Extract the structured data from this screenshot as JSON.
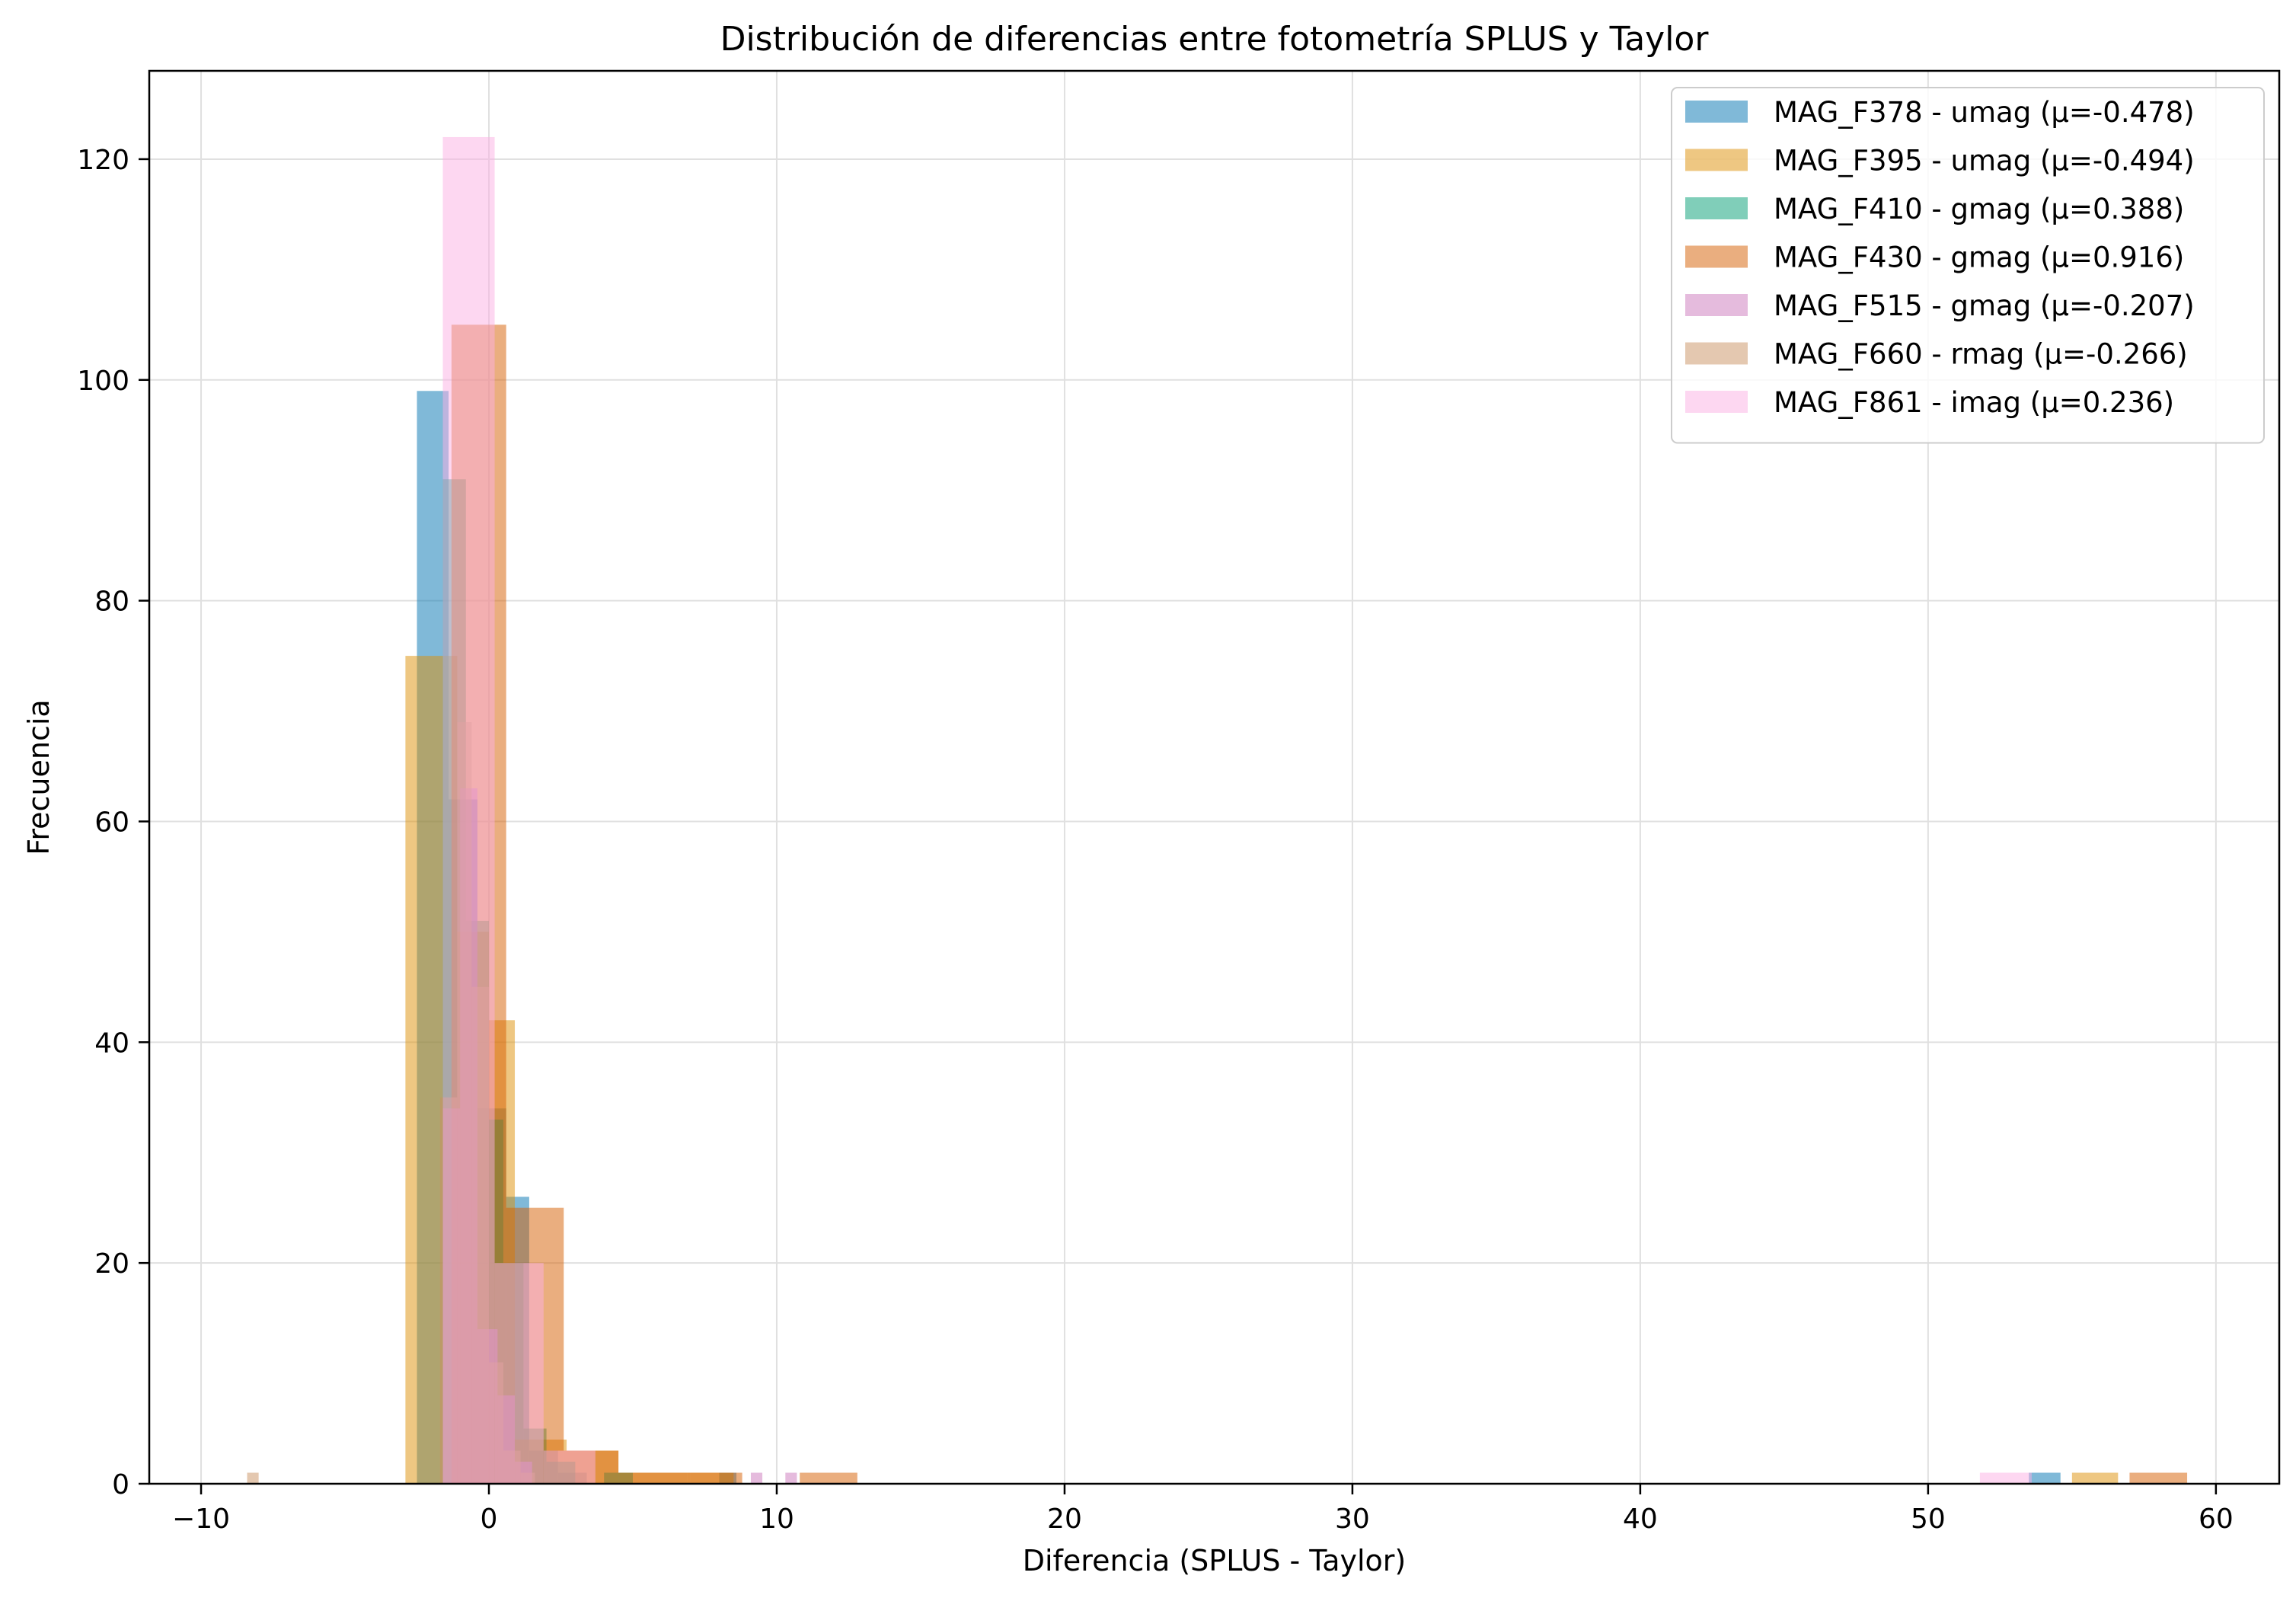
{
  "chart_data": {
    "type": "histogram",
    "title": "Distribución de diferencias entre fotometría SPLUS y Taylor",
    "xlabel": "Diferencia (SPLUS - Taylor)",
    "ylabel": "Frecuencia",
    "xlim": [
      -11.8,
      62.2
    ],
    "ylim": [
      0,
      128
    ],
    "xticks": [
      -10,
      0,
      10,
      20,
      30,
      40,
      50,
      60
    ],
    "yticks": [
      0,
      20,
      40,
      60,
      80,
      100,
      120
    ],
    "grid": true,
    "legend_position": "top-right",
    "series": [
      {
        "name": "MAG_F378 - umag (μ=-0.478)",
        "color": "#0173b2",
        "bins": [
          {
            "x0": -2.5,
            "x1": -1.4,
            "count": 99
          },
          {
            "x0": -1.4,
            "x1": -0.4,
            "count": 62
          },
          {
            "x0": -0.4,
            "x1": 0.6,
            "count": 34
          },
          {
            "x0": 0.6,
            "x1": 1.4,
            "count": 26
          },
          {
            "x0": 1.4,
            "x1": 2.4,
            "count": 3
          },
          {
            "x0": 2.4,
            "x1": 3.4,
            "count": 1
          },
          {
            "x0": 8.0,
            "x1": 8.6,
            "count": 1
          },
          {
            "x0": 53.5,
            "x1": 54.6,
            "count": 1
          }
        ]
      },
      {
        "name": "MAG_F395 - umag (μ=-0.494)",
        "color": "#de8f05",
        "bins": [
          {
            "x0": -2.9,
            "x1": -1.1,
            "count": 75
          },
          {
            "x0": -1.1,
            "x1": 0.0,
            "count": 50
          },
          {
            "x0": 0.0,
            "x1": 0.9,
            "count": 42
          },
          {
            "x0": 0.9,
            "x1": 2.7,
            "count": 4
          },
          {
            "x0": 2.7,
            "x1": 4.5,
            "count": 3
          },
          {
            "x0": 4.5,
            "x1": 7.0,
            "count": 1
          },
          {
            "x0": 7.0,
            "x1": 8.5,
            "count": 1
          },
          {
            "x0": 55.0,
            "x1": 56.6,
            "count": 1
          }
        ]
      },
      {
        "name": "MAG_F410 - gmag (μ=0.388)",
        "color": "#029e73",
        "bins": [
          {
            "x0": -1.6,
            "x1": -0.8,
            "count": 91
          },
          {
            "x0": -0.8,
            "x1": 0.0,
            "count": 51
          },
          {
            "x0": 0.0,
            "x1": 0.5,
            "count": 33
          },
          {
            "x0": 0.5,
            "x1": 1.2,
            "count": 20
          },
          {
            "x0": 1.2,
            "x1": 2.0,
            "count": 5
          },
          {
            "x0": 2.0,
            "x1": 3.0,
            "count": 2
          },
          {
            "x0": 4.0,
            "x1": 5.0,
            "count": 1
          }
        ]
      },
      {
        "name": "MAG_F430 - gmag (μ=0.916)",
        "color": "#d55e00",
        "bins": [
          {
            "x0": -1.3,
            "x1": 0.6,
            "count": 105
          },
          {
            "x0": 0.6,
            "x1": 2.6,
            "count": 25
          },
          {
            "x0": 2.6,
            "x1": 4.5,
            "count": 3
          },
          {
            "x0": 4.5,
            "x1": 6.9,
            "count": 1
          },
          {
            "x0": 6.9,
            "x1": 8.8,
            "count": 1
          },
          {
            "x0": 10.8,
            "x1": 12.8,
            "count": 1
          },
          {
            "x0": 57.0,
            "x1": 59.0,
            "count": 1
          }
        ]
      },
      {
        "name": "MAG_F515 - gmag (μ=-0.207)",
        "color": "#cc78bc",
        "bins": [
          {
            "x0": -1.6,
            "x1": -1.0,
            "count": 34
          },
          {
            "x0": -1.0,
            "x1": -0.4,
            "count": 63
          },
          {
            "x0": -0.4,
            "x1": 0.3,
            "count": 14
          },
          {
            "x0": 0.3,
            "x1": 0.9,
            "count": 8
          },
          {
            "x0": 0.9,
            "x1": 1.5,
            "count": 2
          },
          {
            "x0": 9.1,
            "x1": 9.5,
            "count": 1
          },
          {
            "x0": 10.3,
            "x1": 10.7,
            "count": 1
          }
        ]
      },
      {
        "name": "MAG_F660 - rmag (μ=-0.266)",
        "color": "#ca9161",
        "bins": [
          {
            "x0": -8.4,
            "x1": -8.0,
            "count": 1
          },
          {
            "x0": -1.7,
            "x1": -1.1,
            "count": 35
          },
          {
            "x0": -1.1,
            "x1": -0.6,
            "count": 69
          },
          {
            "x0": -0.6,
            "x1": 0.0,
            "count": 45
          },
          {
            "x0": 0.0,
            "x1": 0.5,
            "count": 11
          },
          {
            "x0": 0.5,
            "x1": 1.1,
            "count": 3
          },
          {
            "x0": 1.1,
            "x1": 1.6,
            "count": 1
          }
        ]
      },
      {
        "name": "MAG_F861 - imag (μ=0.236)",
        "color": "#fbafe4",
        "bins": [
          {
            "x0": -1.6,
            "x1": 0.2,
            "count": 122
          },
          {
            "x0": 0.2,
            "x1": 1.9,
            "count": 20
          },
          {
            "x0": 1.9,
            "x1": 3.7,
            "count": 3
          },
          {
            "x0": 51.8,
            "x1": 53.6,
            "count": 1
          }
        ]
      }
    ]
  }
}
